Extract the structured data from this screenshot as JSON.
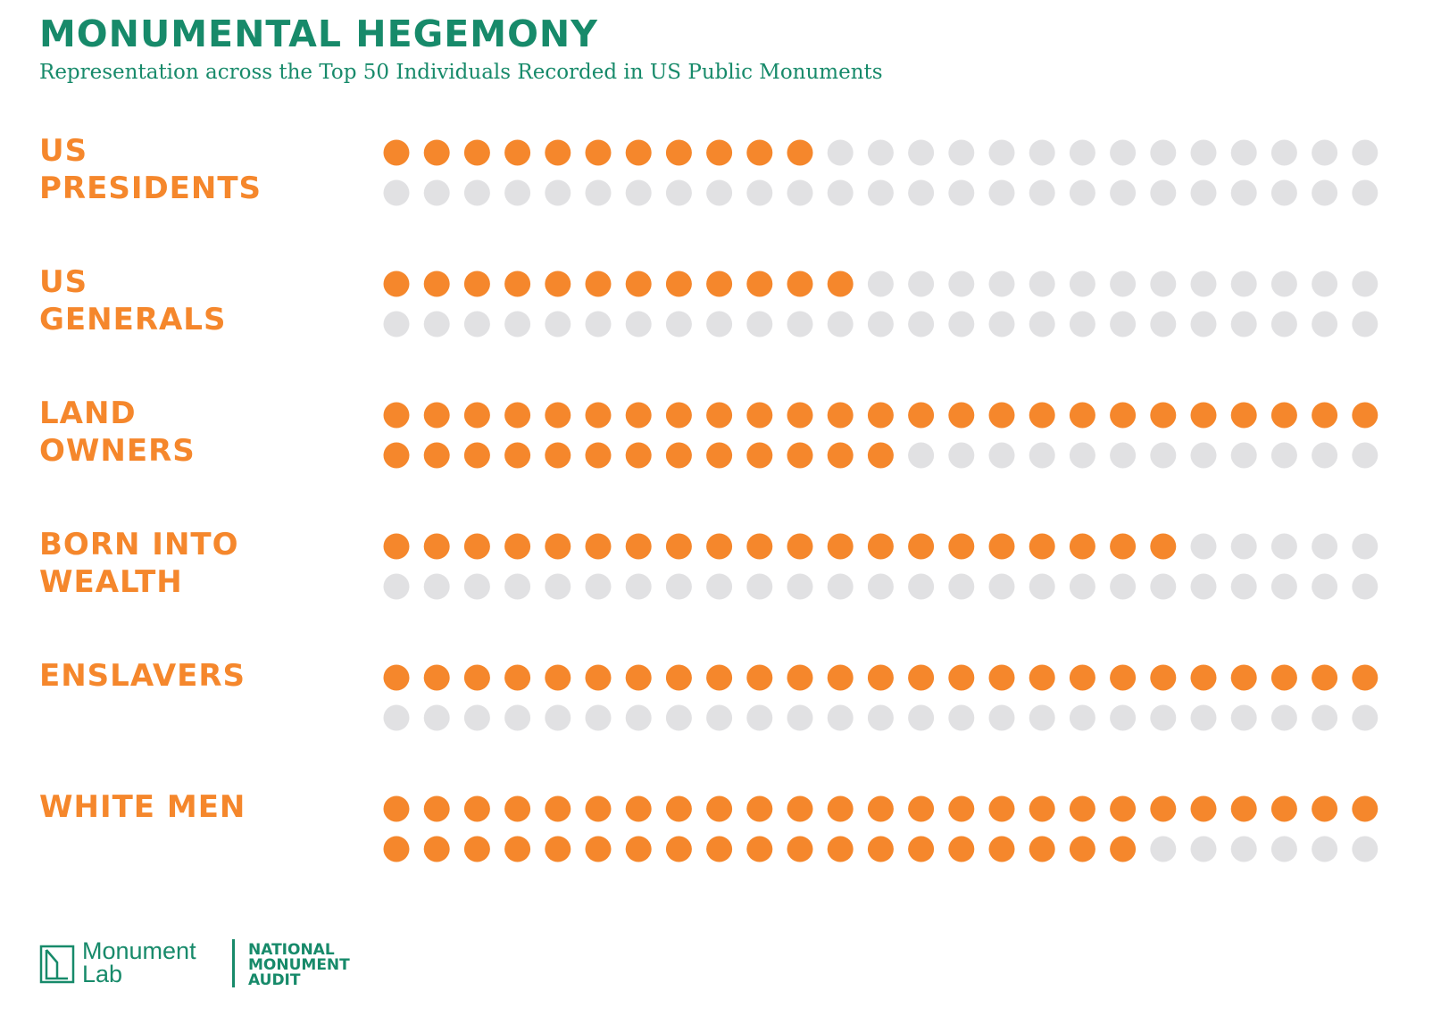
{
  "title": "MONUMENTAL HEGEMONY",
  "subtitle": "Representation across the Top 50 Individuals Recorded in US Public Monuments",
  "colors": {
    "title": "#178a6a",
    "accent": "#f5872c",
    "empty": "#e1e1e3",
    "footer": "#178a6a"
  },
  "chart_data": {
    "type": "dot-matrix",
    "total_per_category": 50,
    "dots_per_row": 25,
    "categories": [
      {
        "label_lines": [
          "US",
          "PRESIDENTS"
        ],
        "value": 11
      },
      {
        "label_lines": [
          "US",
          "GENERALS"
        ],
        "value": 12
      },
      {
        "label_lines": [
          "LAND",
          "OWNERS"
        ],
        "value": 38
      },
      {
        "label_lines": [
          "BORN INTO",
          "WEALTH"
        ],
        "value": 20
      },
      {
        "label_lines": [
          "ENSLAVERS"
        ],
        "value": 25
      },
      {
        "label_lines": [
          "WHITE MEN"
        ],
        "value": 44
      }
    ]
  },
  "footer": {
    "logo_lines": [
      "Monument",
      "Lab"
    ],
    "logo_icon": "monument-lab-logo-icon",
    "audit_lines": [
      "NATIONAL",
      "MONUMENT",
      "AUDIT"
    ]
  }
}
